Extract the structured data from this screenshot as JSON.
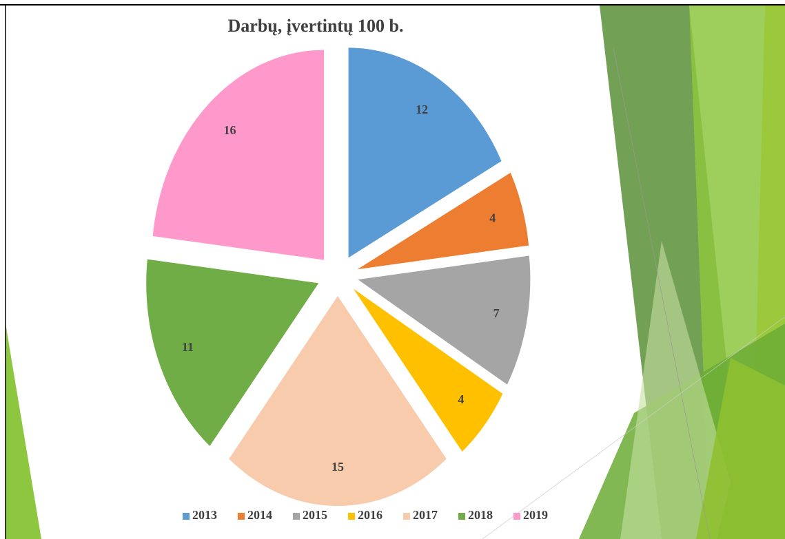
{
  "chart_data": {
    "type": "pie",
    "title": "Darbų, įvertintų 100 b.",
    "categories": [
      "2013",
      "2014",
      "2015",
      "2016",
      "2017",
      "2018",
      "2019"
    ],
    "values": [
      12,
      4,
      7,
      4,
      15,
      11,
      16
    ],
    "colors": [
      "#5b9bd5",
      "#ed7d31",
      "#a5a5a5",
      "#ffc000",
      "#f8cbad",
      "#70ad47",
      "#ff99cc"
    ],
    "legend": "bottom"
  }
}
